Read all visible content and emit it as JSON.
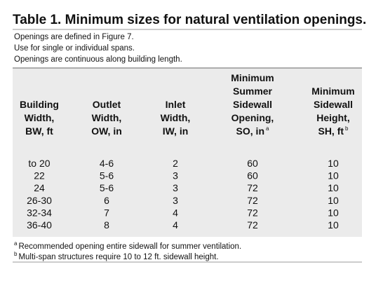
{
  "title": "Table 1. Minimum sizes for natural ventilation openings.",
  "notes": [
    "Openings are defined in Figure 7.",
    "Use for single or individual spans.",
    "Openings are continuous along building length."
  ],
  "table": {
    "header": [
      {
        "lines": [
          "Building",
          "Width,",
          "BW, ft"
        ]
      },
      {
        "lines": [
          "Outlet",
          "Width,",
          "OW, in"
        ]
      },
      {
        "lines": [
          "Inlet",
          "Width,",
          "IW, in"
        ]
      },
      {
        "lines": [
          "Minimum",
          "Summer",
          "Sidewall",
          "Opening,",
          "SO, in"
        ],
        "sup": "a"
      },
      {
        "lines": [
          "Minimum",
          "Sidewall",
          "Height,",
          "SH, ft"
        ],
        "sup": "b"
      }
    ],
    "rows": [
      [
        "to 20",
        "4-6",
        "2",
        "60",
        "10"
      ],
      [
        "22",
        "5-6",
        "3",
        "60",
        "10"
      ],
      [
        "24",
        "5-6",
        "3",
        "72",
        "10"
      ],
      [
        "26-30",
        "6",
        "3",
        "72",
        "10"
      ],
      [
        "32-34",
        "7",
        "4",
        "72",
        "10"
      ],
      [
        "36-40",
        "8",
        "4",
        "72",
        "10"
      ]
    ]
  },
  "footnotes": [
    {
      "mark": "a",
      "text": "Recommended opening entire sidewall for summer ventilation."
    },
    {
      "mark": "b",
      "text": "Multi-span structures require 10 to 12 ft. sidewall height."
    }
  ]
}
